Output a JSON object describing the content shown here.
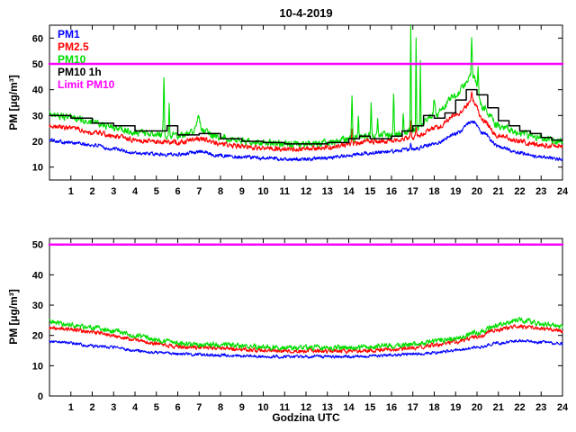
{
  "figure": {
    "background": "#ffffff",
    "frame_color": "#000000"
  },
  "chart_data": [
    {
      "type": "line",
      "title": "10-4-2019",
      "xlabel": "",
      "ylabel": "PM [µg/m³]",
      "xlim": [
        0,
        24
      ],
      "ylim": [
        5,
        65
      ],
      "xticks": [
        1,
        2,
        3,
        4,
        5,
        6,
        7,
        8,
        9,
        10,
        11,
        12,
        13,
        14,
        15,
        16,
        17,
        18,
        19,
        20,
        21,
        22,
        23,
        24
      ],
      "yticks": [
        10,
        20,
        30,
        40,
        50,
        60
      ],
      "grid": false,
      "show_legend": true,
      "legend_position": "top-left",
      "series": [
        {
          "name": "PM1",
          "color": "#0000ff",
          "style": "noisy",
          "noise": 0.6,
          "seed": 101,
          "x": [
            0,
            1,
            2,
            3,
            4,
            5,
            6,
            7,
            8,
            9,
            10,
            11,
            12,
            13,
            14,
            15,
            16,
            17,
            18,
            19,
            19.8,
            20.3,
            21,
            22,
            23,
            24
          ],
          "values": [
            20.5,
            19.5,
            18.5,
            17,
            15.5,
            15,
            15,
            16,
            14.5,
            14,
            13.5,
            13,
            13,
            13.5,
            14.5,
            15.5,
            16,
            17,
            19,
            23,
            27.5,
            23,
            18,
            15.5,
            14,
            13
          ],
          "spikes": [
            {
              "x": 16.9,
              "h": 3,
              "w": 0.03
            }
          ]
        },
        {
          "name": "PM2.5",
          "color": "#ff0000",
          "style": "noisy",
          "noise": 0.8,
          "seed": 202,
          "x": [
            0,
            1,
            2,
            3,
            4,
            5,
            6,
            7,
            8,
            9,
            10,
            11,
            12,
            13,
            14,
            15,
            16,
            17,
            18,
            19,
            19.8,
            20.3,
            21,
            22,
            23,
            24
          ],
          "values": [
            26,
            25,
            23.5,
            22,
            20.5,
            20,
            19.5,
            21,
            19,
            18,
            17.5,
            17,
            17,
            17.5,
            19,
            20,
            20,
            21.5,
            25,
            30,
            35.5,
            28,
            22,
            20,
            18.5,
            18
          ],
          "spikes": [
            {
              "x": 14.15,
              "h": 5,
              "w": 0.03
            },
            {
              "x": 16.9,
              "h": 6,
              "w": 0.03
            },
            {
              "x": 17.15,
              "h": 4,
              "w": 0.03
            },
            {
              "x": 19.75,
              "h": 3,
              "w": 0.04
            }
          ]
        },
        {
          "name": "PM10",
          "color": "#00dd00",
          "style": "noisy",
          "noise": 1.1,
          "seed": 303,
          "x": [
            0,
            1,
            2,
            3,
            4,
            5,
            6,
            7,
            8,
            9,
            10,
            11,
            12,
            13,
            14,
            15,
            16,
            17,
            18,
            19,
            19.8,
            20.3,
            21,
            22,
            23,
            24
          ],
          "values": [
            30.5,
            29,
            27.5,
            25,
            23.5,
            23,
            22,
            24,
            21.5,
            20,
            19.5,
            19,
            19,
            19.5,
            21,
            22,
            22.5,
            24,
            30,
            38,
            45.5,
            33,
            26,
            23,
            21.5,
            20
          ],
          "spikes": [
            {
              "x": 5.35,
              "h": 22,
              "w": 0.03
            },
            {
              "x": 5.6,
              "h": 13,
              "w": 0.025
            },
            {
              "x": 6.95,
              "h": 5,
              "w": 0.12
            },
            {
              "x": 14.15,
              "h": 16,
              "w": 0.03
            },
            {
              "x": 14.45,
              "h": 9,
              "w": 0.025
            },
            {
              "x": 15.05,
              "h": 12,
              "w": 0.03
            },
            {
              "x": 15.35,
              "h": 7,
              "w": 0.025
            },
            {
              "x": 16.1,
              "h": 15,
              "w": 0.03
            },
            {
              "x": 16.55,
              "h": 8,
              "w": 0.025
            },
            {
              "x": 16.9,
              "h": 42,
              "w": 0.025
            },
            {
              "x": 17.15,
              "h": 36,
              "w": 0.022
            },
            {
              "x": 17.35,
              "h": 26,
              "w": 0.022
            },
            {
              "x": 18.0,
              "h": 6,
              "w": 0.05
            },
            {
              "x": 19.75,
              "h": 16,
              "w": 0.03
            },
            {
              "x": 20.05,
              "h": 9,
              "w": 0.03
            }
          ]
        },
        {
          "name": "PM10 1h",
          "color": "#000000",
          "style": "step",
          "linewidth": 1.5,
          "x": [
            0,
            1,
            2,
            3,
            4,
            5,
            5.5,
            6,
            7,
            8,
            9,
            10,
            11,
            12,
            13,
            14,
            14.5,
            15,
            16,
            16.5,
            17,
            17.5,
            18,
            18.5,
            19,
            19.5,
            20,
            20.5,
            21,
            21.5,
            22,
            22.5,
            23,
            23.5
          ],
          "values": [
            30,
            29,
            27,
            26,
            24,
            24,
            26,
            22.5,
            23,
            21,
            20,
            19.5,
            19,
            19,
            19.5,
            21,
            22,
            21,
            22,
            24,
            26,
            30,
            29,
            31,
            36,
            40,
            38,
            33,
            28,
            26,
            24,
            23,
            21.5,
            20.5
          ]
        },
        {
          "name": "Limit PM10",
          "color": "#ff00ff",
          "style": "hline",
          "value": 50,
          "linewidth": 2.5
        }
      ]
    },
    {
      "type": "line",
      "title": "",
      "xlabel": "Godzina UTC",
      "ylabel": "PM [µg/m³]",
      "xlim": [
        0,
        24
      ],
      "ylim": [
        0,
        52
      ],
      "xticks": [
        1,
        2,
        3,
        4,
        5,
        6,
        7,
        8,
        9,
        10,
        11,
        12,
        13,
        14,
        15,
        16,
        17,
        18,
        19,
        20,
        21,
        22,
        23,
        24
      ],
      "yticks": [
        0,
        10,
        20,
        30,
        40,
        50
      ],
      "grid": false,
      "show_legend": false,
      "series": [
        {
          "name": "PM1",
          "color": "#0000ff",
          "style": "noisy",
          "noise": 0.4,
          "seed": 404,
          "x": [
            0,
            1,
            2,
            3,
            4,
            5,
            6,
            7,
            8,
            9,
            10,
            11,
            12,
            13,
            14,
            15,
            16,
            17,
            18,
            19,
            20,
            21,
            22,
            23,
            24
          ],
          "values": [
            18,
            17.5,
            16.5,
            16,
            15,
            14.3,
            14,
            13.6,
            13.5,
            13.2,
            13,
            13,
            13,
            13,
            13,
            13.2,
            13.4,
            13.8,
            14.3,
            15,
            16,
            17.5,
            18.3,
            17.8,
            17.3
          ]
        },
        {
          "name": "PM2.5",
          "color": "#ff0000",
          "style": "noisy",
          "noise": 0.55,
          "seed": 505,
          "x": [
            0,
            1,
            2,
            3,
            4,
            5,
            6,
            7,
            8,
            9,
            10,
            11,
            12,
            13,
            14,
            15,
            16,
            17,
            18,
            19,
            20,
            21,
            22,
            23,
            24
          ],
          "values": [
            22.5,
            22,
            21,
            20,
            18.5,
            17.3,
            16.3,
            16,
            15.8,
            15.3,
            15,
            14.8,
            14.8,
            14.8,
            14.8,
            15,
            15.3,
            15.8,
            16.8,
            17.8,
            19.5,
            22,
            23,
            22.3,
            21.5
          ]
        },
        {
          "name": "PM10",
          "color": "#00dd00",
          "style": "noisy",
          "noise": 0.7,
          "seed": 606,
          "x": [
            0,
            1,
            2,
            3,
            4,
            5,
            6,
            7,
            8,
            9,
            10,
            11,
            12,
            13,
            14,
            15,
            16,
            17,
            18,
            19,
            20,
            21,
            22,
            23,
            24
          ],
          "values": [
            24.5,
            23.5,
            22.5,
            21.5,
            20,
            18.5,
            17.5,
            17,
            17,
            16.5,
            16.2,
            16,
            16,
            16,
            16,
            16.3,
            16.5,
            17,
            18,
            19,
            21,
            23.5,
            25,
            24,
            23
          ]
        },
        {
          "name": "Limit PM10",
          "color": "#ff00ff",
          "style": "hline",
          "value": 50,
          "linewidth": 2.5
        }
      ]
    }
  ]
}
